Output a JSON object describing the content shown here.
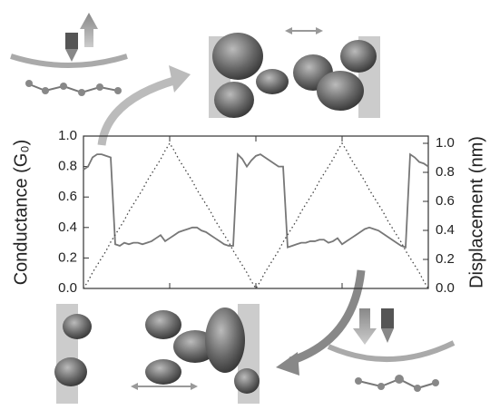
{
  "chart_data": {
    "type": "line",
    "y_label": "Conductance (G₀)",
    "y2_label": "Displacement (nm)",
    "ylim": [
      0,
      1
    ],
    "yticks": [
      {
        "value": 0,
        "label": "0.0"
      },
      {
        "value": 0.2,
        "label": "0.2"
      },
      {
        "value": 0.4,
        "label": "0.4"
      },
      {
        "value": 0.6,
        "label": "0.6"
      },
      {
        "value": 0.8,
        "label": "0.8"
      },
      {
        "value": 1,
        "label": "1.0"
      }
    ],
    "y2lim": [
      0,
      1.05
    ],
    "y2ticks": [
      {
        "value": 0,
        "label": "0.0"
      },
      {
        "value": 0.2,
        "label": "0.2"
      },
      {
        "value": 0.4,
        "label": "0.4"
      },
      {
        "value": 0.6,
        "label": "0.6"
      },
      {
        "value": 0.8,
        "label": "0.8"
      },
      {
        "value": 1,
        "label": "1.0"
      }
    ],
    "series": [
      {
        "color": "#777777",
        "style": "solid",
        "values": [
          0.78,
          0.8,
          0.86,
          0.88,
          0.88,
          0.87,
          0.86,
          0.29,
          0.28,
          0.3,
          0.29,
          0.3,
          0.3,
          0.29,
          0.3,
          0.31,
          0.33,
          0.35,
          0.31,
          0.33,
          0.35,
          0.37,
          0.38,
          0.39,
          0.4,
          0.4,
          0.38,
          0.37,
          0.35,
          0.33,
          0.31,
          0.29,
          0.28,
          0.28,
          0.88,
          0.85,
          0.8,
          0.84,
          0.87,
          0.88,
          0.86,
          0.84,
          0.82,
          0.8,
          0.8,
          0.27,
          0.28,
          0.29,
          0.3,
          0.3,
          0.31,
          0.31,
          0.32,
          0.32,
          0.3,
          0.31,
          0.33,
          0.29,
          0.31,
          0.33,
          0.35,
          0.37,
          0.39,
          0.4,
          0.39,
          0.38,
          0.36,
          0.34,
          0.32,
          0.3,
          0.28,
          0.27,
          0.88,
          0.86,
          0.83,
          0.82,
          0.8
        ]
      },
      {
        "color": "#444444",
        "style": "dotted",
        "axis": "y2",
        "values": [
          0,
          0.05,
          0.11,
          0.16,
          0.21,
          0.26,
          0.32,
          0.37,
          0.42,
          0.47,
          0.53,
          0.58,
          0.63,
          0.68,
          0.74,
          0.79,
          0.84,
          0.89,
          0.95,
          1.0,
          0.95,
          0.89,
          0.84,
          0.79,
          0.74,
          0.68,
          0.63,
          0.58,
          0.53,
          0.47,
          0.42,
          0.37,
          0.32,
          0.26,
          0.21,
          0.16,
          0.11,
          0.05,
          0,
          0.05,
          0.11,
          0.16,
          0.21,
          0.26,
          0.32,
          0.37,
          0.42,
          0.47,
          0.53,
          0.58,
          0.63,
          0.68,
          0.74,
          0.79,
          0.84,
          0.89,
          0.95,
          1.0,
          0.95,
          0.89,
          0.84,
          0.79,
          0.74,
          0.68,
          0.63,
          0.58,
          0.53,
          0.47,
          0.42,
          0.37,
          0.32,
          0.26,
          0.21,
          0.16,
          0.11,
          0.05,
          0
        ]
      }
    ]
  }
}
